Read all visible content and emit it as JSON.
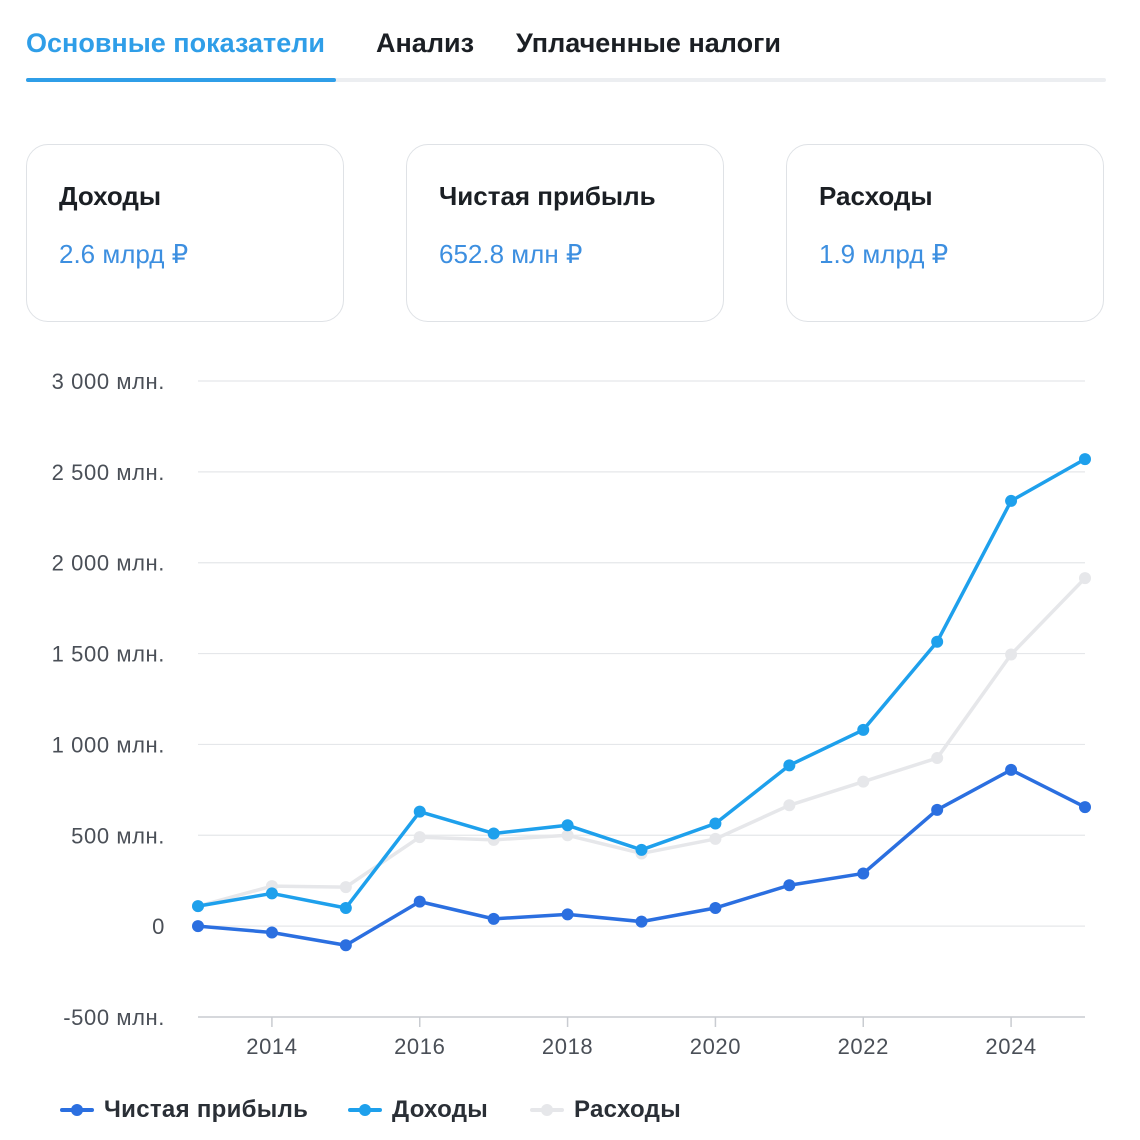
{
  "tabs": [
    {
      "label": "Основные показатели",
      "active": true
    },
    {
      "label": "Анализ",
      "active": false
    },
    {
      "label": "Уплаченные налоги",
      "active": false
    }
  ],
  "cards": [
    {
      "title": "Доходы",
      "value": "2.6 млрд ₽"
    },
    {
      "title": "Чистая прибыль",
      "value": "652.8 млн ₽"
    },
    {
      "title": "Расходы",
      "value": "1.9 млрд ₽"
    }
  ],
  "colors": {
    "accent": "#2f9ee8",
    "net_profit": "#2b6fe0",
    "revenue": "#1ea0ec",
    "expenses": "#e6e7ea"
  },
  "chart_data": {
    "type": "line",
    "x": [
      2013,
      2014,
      2015,
      2016,
      2017,
      2018,
      2019,
      2020,
      2021,
      2022,
      2023,
      2024,
      2025
    ],
    "y_ticks": [
      -500,
      0,
      500,
      1000,
      1500,
      2000,
      2500,
      3000
    ],
    "y_tick_labels": [
      "-500 млн.",
      "0",
      "500 млн.",
      "1 000 млн.",
      "1 500 млн.",
      "2 000 млн.",
      "2 500 млн.",
      "3 000 млн."
    ],
    "x_ticks": [
      2014,
      2016,
      2018,
      2020,
      2022,
      2024
    ],
    "x_tick_labels": [
      "2014",
      "2016",
      "2018",
      "2020",
      "2022",
      "2024"
    ],
    "ylim": [
      -500,
      3000
    ],
    "xlim": [
      2013,
      2025
    ],
    "grid": true,
    "legend_position": "bottom-left",
    "series": [
      {
        "name": "Расходы",
        "color": "#e6e7ea",
        "values": [
          110,
          220,
          215,
          490,
          475,
          500,
          400,
          480,
          665,
          795,
          925,
          1495,
          1915
        ]
      },
      {
        "name": "Доходы",
        "color": "#1ea0ec",
        "values": [
          110,
          180,
          100,
          630,
          510,
          555,
          420,
          565,
          885,
          1080,
          1565,
          2340,
          2570
        ]
      },
      {
        "name": "Чистая прибыль",
        "color": "#2b6fe0",
        "values": [
          0,
          -35,
          -105,
          135,
          40,
          65,
          25,
          100,
          225,
          290,
          640,
          860,
          655
        ]
      }
    ],
    "legend": [
      "Чистая прибыль",
      "Доходы",
      "Расходы"
    ]
  }
}
